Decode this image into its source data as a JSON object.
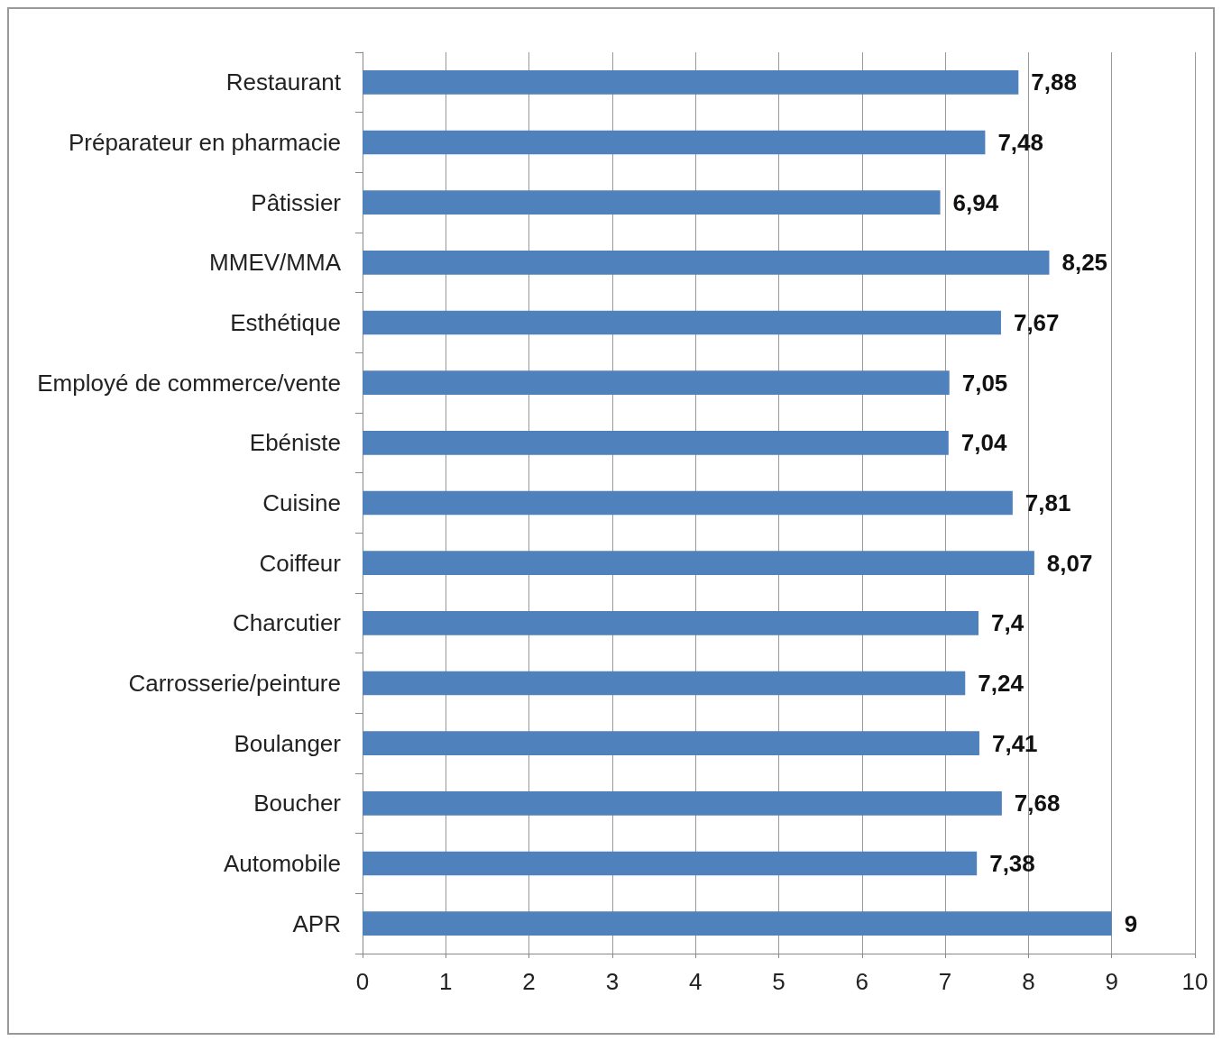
{
  "chart_data": {
    "type": "bar",
    "orientation": "horizontal",
    "categories": [
      "Restaurant",
      "Préparateur en pharmacie",
      "Pâtissier",
      "MMEV/MMA",
      "Esthétique",
      "Employé de commerce/vente",
      "Ebéniste",
      "Cuisine",
      "Coiffeur",
      "Charcutier",
      "Carrosserie/peinture",
      "Boulanger",
      "Boucher",
      "Automobile",
      "APR"
    ],
    "values": [
      7.88,
      7.48,
      6.94,
      8.25,
      7.67,
      7.05,
      7.04,
      7.81,
      8.07,
      7.4,
      7.24,
      7.41,
      7.68,
      7.38,
      9
    ],
    "value_labels": [
      "7,88",
      "7,48",
      "6,94",
      "8,25",
      "7,67",
      "7,05",
      "7,04",
      "7,81",
      "8,07",
      "7,4",
      "7,24",
      "7,41",
      "7,68",
      "7,38",
      "9"
    ],
    "color": "#4f81bd",
    "xlim": [
      0,
      10
    ],
    "xticks": [
      0,
      1,
      2,
      3,
      4,
      5,
      6,
      7,
      8,
      9,
      10
    ],
    "grid": "x"
  }
}
